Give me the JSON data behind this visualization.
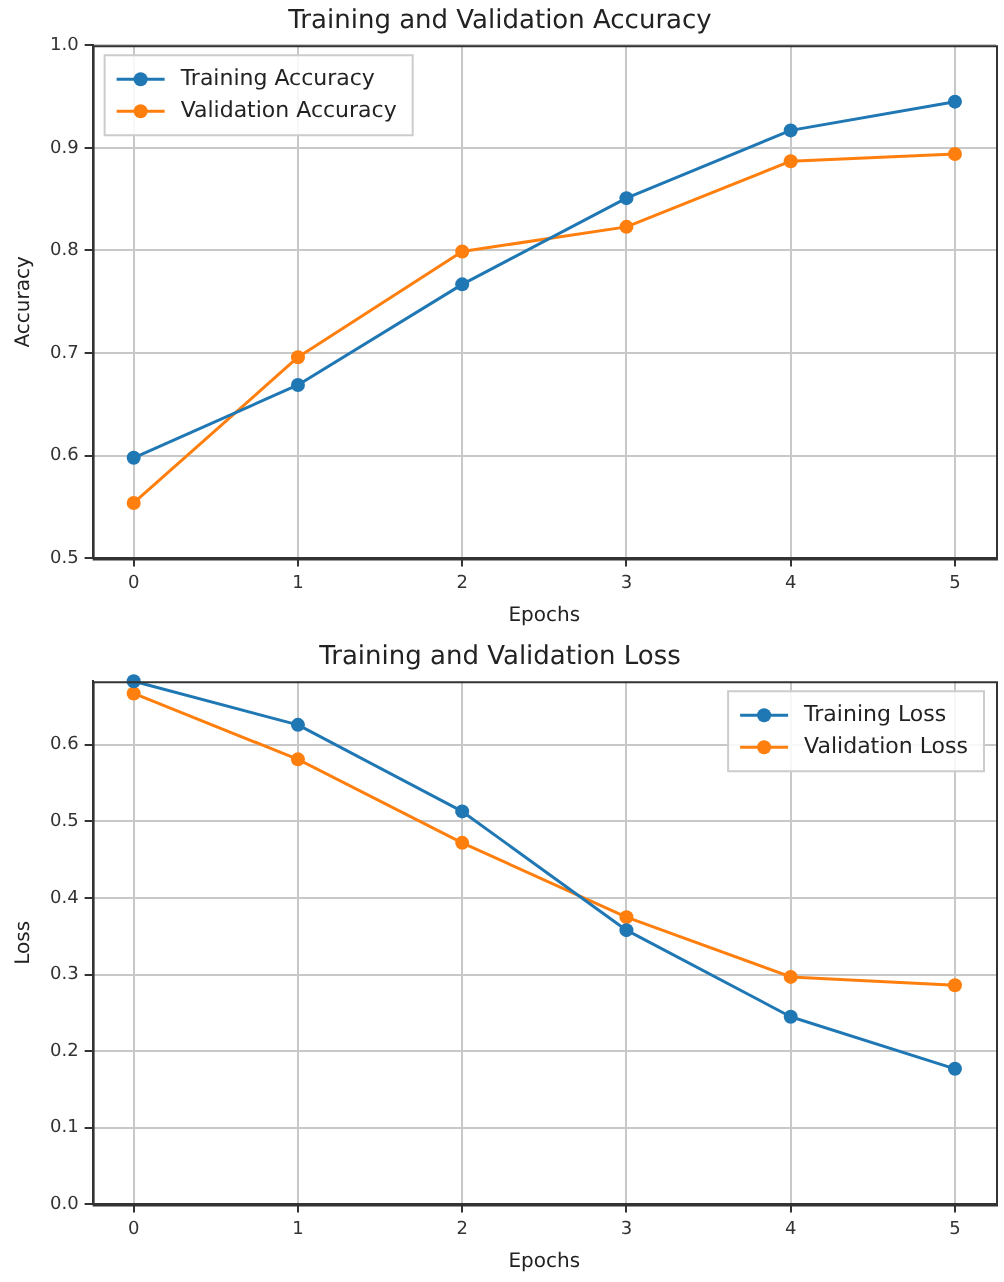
{
  "chart_data": [
    {
      "type": "line",
      "title": "Training and Validation Accuracy",
      "xlabel": "Epochs",
      "ylabel": "Accuracy",
      "x": [
        0,
        1,
        2,
        3,
        4,
        5
      ],
      "series": [
        {
          "name": "Training Accuracy",
          "color": "#1f77b4",
          "values": [
            0.598,
            0.669,
            0.767,
            0.851,
            0.917,
            0.945
          ]
        },
        {
          "name": "Validation Accuracy",
          "color": "#ff7f0e",
          "values": [
            0.554,
            0.696,
            0.799,
            0.823,
            0.887,
            0.894
          ]
        }
      ],
      "xlim": [
        -0.25,
        5.25
      ],
      "xticks": [
        0,
        1,
        2,
        3,
        4,
        5
      ],
      "ylim": [
        0.5,
        1.0
      ],
      "yticks": [
        0.5,
        0.6,
        0.7,
        0.8,
        0.9,
        {
          "value": 1,
          "label": "1.0"
        }
      ],
      "grid": true,
      "legend": "top left",
      "marker": "circle",
      "line_style": "solid"
    },
    {
      "type": "line",
      "title": "Training and Validation Loss",
      "xlabel": "Epochs",
      "ylabel": "Loss",
      "x": [
        0,
        1,
        2,
        3,
        4,
        5
      ],
      "series": [
        {
          "name": "Training Loss",
          "color": "#1f77b4",
          "values": [
            0.683,
            0.626,
            0.513,
            0.358,
            0.245,
            0.177
          ]
        },
        {
          "name": "Validation Loss",
          "color": "#ff7f0e",
          "values": [
            0.667,
            0.581,
            0.472,
            0.375,
            0.297,
            0.286
          ]
        }
      ],
      "xlim": [
        -0.25,
        5.25
      ],
      "xticks": [
        0,
        1,
        2,
        3,
        4,
        5
      ],
      "ylim": [
        0.0,
        0.683
      ],
      "yticks": [
        {
          "value": 0,
          "label": "0.0"
        },
        0.1,
        0.2,
        0.3,
        0.4,
        0.5,
        0.6
      ],
      "grid": true,
      "legend": "top right",
      "marker": "circle",
      "line_style": "solid"
    }
  ]
}
